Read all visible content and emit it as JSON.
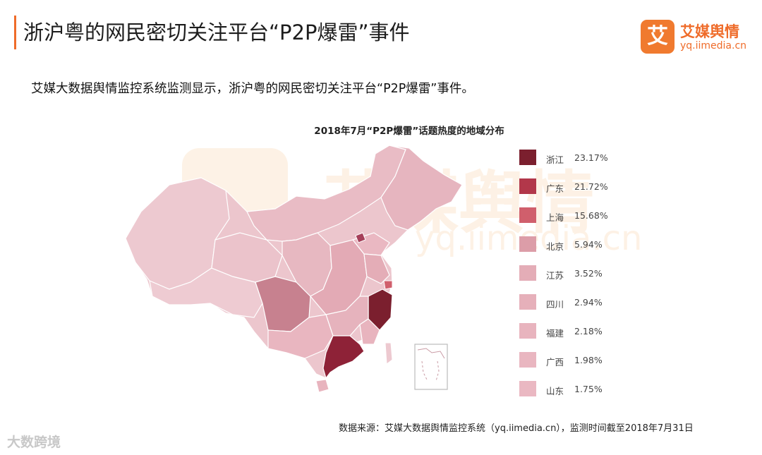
{
  "header": {
    "title": "浙沪粤的网民密切关注平台“P2P爆雷”事件",
    "logo_glyph": "艾",
    "logo_name": "艾媒舆情",
    "logo_url": "yq.iimedia.cn"
  },
  "subtitle": "艾媒大数据舆情监控系统监测显示，浙沪粤的网民密切关注平台“P2P爆雷”事件。",
  "watermark": {
    "text": "艾媒舆情",
    "url": "yq.iimedia.cn"
  },
  "chart_data": {
    "type": "choropleth-map",
    "title": "2018年7月“P2P爆雷”话题热度的地域分布",
    "unit": "%",
    "legend_placement": "right",
    "regions": [
      {
        "name": "浙江",
        "value": 23.17,
        "label": "23.17%",
        "color": "#7b1f2e"
      },
      {
        "name": "广东",
        "value": 21.72,
        "label": "21.72%",
        "color": "#b2374a"
      },
      {
        "name": "上海",
        "value": 15.68,
        "label": "15.68%",
        "color": "#d05f6c"
      },
      {
        "name": "北京",
        "value": 5.94,
        "label": "5.94%",
        "color": "#dc9da8"
      },
      {
        "name": "江苏",
        "value": 3.52,
        "label": "3.52%",
        "color": "#e4adb7"
      },
      {
        "name": "四川",
        "value": 2.94,
        "label": "2.94%",
        "color": "#e6b0ba"
      },
      {
        "name": "福建",
        "value": 2.18,
        "label": "2.18%",
        "color": "#e8b4be"
      },
      {
        "name": "广西",
        "value": 1.98,
        "label": "1.98%",
        "color": "#e9b6c0"
      },
      {
        "name": "山东",
        "value": 1.75,
        "label": "1.75%",
        "color": "#eab8c2"
      }
    ]
  },
  "source": "数据来源：艾媒大数据舆情监控系统（yq.iimedia.cn），监测时间截至2018年7月31日",
  "corner_watermark": "大数跨境"
}
